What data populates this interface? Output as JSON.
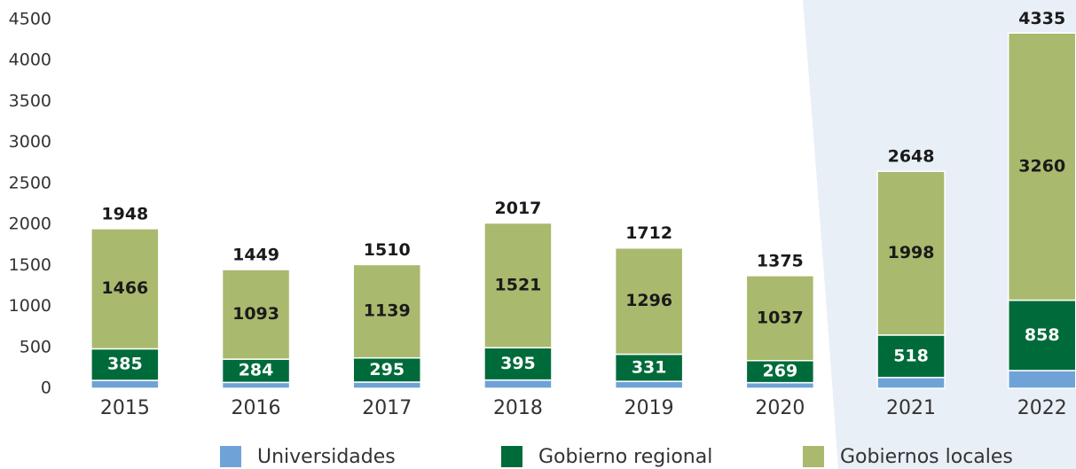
{
  "chart_data": {
    "type": "stacked_bar",
    "categories": [
      "2015",
      "2016",
      "2017",
      "2018",
      "2019",
      "2020",
      "2021",
      "2022"
    ],
    "series": [
      {
        "name": "Universidades",
        "color": "#6fa3d8",
        "values": [
          97,
          72,
          76,
          101,
          85,
          69,
          132,
          217
        ]
      },
      {
        "name": "Gobierno regional",
        "color": "#006b3a",
        "values": [
          385,
          284,
          295,
          395,
          331,
          269,
          518,
          858
        ],
        "label_color": "#ffffff"
      },
      {
        "name": "Gobiernos locales",
        "color": "#a9b96e",
        "values": [
          1466,
          1093,
          1139,
          1521,
          1296,
          1037,
          1998,
          3260
        ],
        "label_color": "#1a1a1a"
      }
    ],
    "totals": [
      1948,
      1449,
      1510,
      2017,
      1712,
      1375,
      2648,
      4335
    ],
    "ylim": [
      0,
      4500
    ],
    "yticks": [
      0,
      500,
      1000,
      1500,
      2000,
      2500,
      3000,
      3500,
      4000,
      4500
    ],
    "grid": false,
    "legend": "bottom"
  }
}
